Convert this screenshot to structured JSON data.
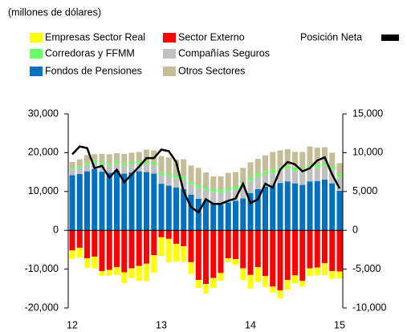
{
  "chart_data": {
    "type": "bar",
    "stacked": true,
    "subtitle": "(millones de dólares)",
    "categories": [
      "12",
      null,
      null,
      null,
      null,
      null,
      null,
      null,
      null,
      null,
      null,
      null,
      "13",
      null,
      null,
      null,
      null,
      null,
      null,
      null,
      null,
      null,
      null,
      null,
      "14",
      null,
      null,
      null,
      null,
      null,
      null,
      null,
      null,
      null,
      null,
      null,
      "15"
    ],
    "ylim": [
      -20000,
      30000
    ],
    "yticks": [
      {
        "value": -20000,
        "label": "-20,000"
      },
      {
        "value": -10000,
        "label": "-10,000"
      },
      0,
      {
        "value": 10000,
        "label": "10,000"
      },
      {
        "value": 20000,
        "label": "20,000"
      },
      {
        "value": 30000,
        "label": "30,000"
      }
    ],
    "y2lim": [
      -10000,
      15000
    ],
    "y2ticks": [
      {
        "value": -10000,
        "label": "-10,000"
      },
      {
        "value": -5000,
        "label": "-5,000"
      },
      0,
      {
        "value": 5000,
        "label": "5,000"
      },
      {
        "value": 10000,
        "label": "10,000"
      },
      {
        "value": 15000,
        "label": "15,000"
      }
    ],
    "series": [
      {
        "name": "Fondos de Pensiones",
        "color": "#0070c0",
        "values": [
          14200,
          14500,
          15200,
          15800,
          15100,
          14800,
          15300,
          14600,
          14900,
          15200,
          15000,
          14600,
          12000,
          11500,
          11000,
          10600,
          9200,
          8100,
          7500,
          7000,
          6600,
          7200,
          7600,
          8200,
          9600,
          10600,
          11200,
          11600,
          12200,
          12600,
          12100,
          11700,
          12600,
          12700,
          13100,
          12100,
          10200
        ]
      },
      {
        "name": "Compañías Seguros",
        "color": "#c0c0c0",
        "values": [
          1500,
          1600,
          1700,
          1800,
          1900,
          1900,
          2000,
          2000,
          2100,
          2100,
          2200,
          2200,
          2300,
          2400,
          2500,
          2600,
          2700,
          2800,
          2900,
          2900,
          3000,
          3000,
          3000,
          3100,
          3100,
          3200,
          3200,
          3200,
          3300,
          3300,
          3300,
          3400,
          3400,
          3400,
          3500,
          3500,
          3500
        ]
      },
      {
        "name": "Corredoras y FFMM",
        "color": "#66ff66",
        "values": [
          400,
          400,
          500,
          500,
          500,
          500,
          500,
          500,
          600,
          600,
          600,
          600,
          600,
          600,
          700,
          700,
          700,
          700,
          700,
          700,
          800,
          800,
          800,
          800,
          800,
          800,
          800,
          800,
          800,
          800,
          800,
          800,
          800,
          800,
          800,
          800,
          800
        ]
      },
      {
        "name": "Otros Sectores",
        "color": "#c4bd97",
        "values": [
          1500,
          1800,
          2000,
          1500,
          2200,
          2400,
          2100,
          2600,
          2400,
          2300,
          3000,
          3200,
          4200,
          4300,
          4000,
          4400,
          4100,
          4500,
          3800,
          3300,
          3500,
          3800,
          3600,
          4000,
          4000,
          3800,
          4100,
          4600,
          4300,
          4200,
          4000,
          4300,
          4800,
          4400,
          4000,
          3600,
          2800
        ]
      },
      {
        "name": "Sector Externo",
        "color": "#ff0000",
        "values": [
          -5200,
          -4500,
          -7200,
          -6800,
          -10500,
          -10200,
          -9500,
          -10800,
          -9800,
          -9200,
          -8600,
          -6400,
          -1800,
          -2200,
          -3500,
          -4100,
          -8200,
          -12800,
          -13800,
          -12300,
          -11000,
          -7200,
          -7400,
          -9800,
          -11500,
          -9500,
          -11800,
          -14500,
          -15500,
          -12800,
          -11600,
          -13000,
          -9800,
          -9600,
          -8500,
          -10500,
          -10600
        ]
      },
      {
        "name": "Empresas Sector Real",
        "color": "#ffff00",
        "values": [
          -2200,
          -2500,
          -2500,
          -3000,
          -1200,
          -1500,
          -2000,
          -2800,
          -2500,
          -3800,
          -4500,
          -4500,
          -4800,
          -6000,
          -4500,
          -4000,
          -3000,
          -2000,
          -2500,
          -2500,
          -2000,
          -1000,
          -1500,
          -3000,
          -3500,
          -3800,
          -2800,
          -1500,
          -2000,
          -2500,
          -2000,
          -1500,
          -2000,
          -2000,
          -3000,
          -2000,
          -1800
        ]
      },
      {
        "name": "Posición Neta",
        "color": "#000000",
        "type": "line",
        "axis": "y2",
        "values": [
          9800,
          10800,
          10600,
          8000,
          8300,
          6800,
          7800,
          6200,
          7200,
          8200,
          9300,
          9300,
          10400,
          10200,
          8800,
          5000,
          3000,
          2300,
          4000,
          3400,
          3400,
          3800,
          4100,
          6000,
          3500,
          4000,
          6000,
          5500,
          7800,
          8800,
          8500,
          7600,
          8000,
          9000,
          9400,
          7200,
          5400
        ]
      }
    ]
  }
}
